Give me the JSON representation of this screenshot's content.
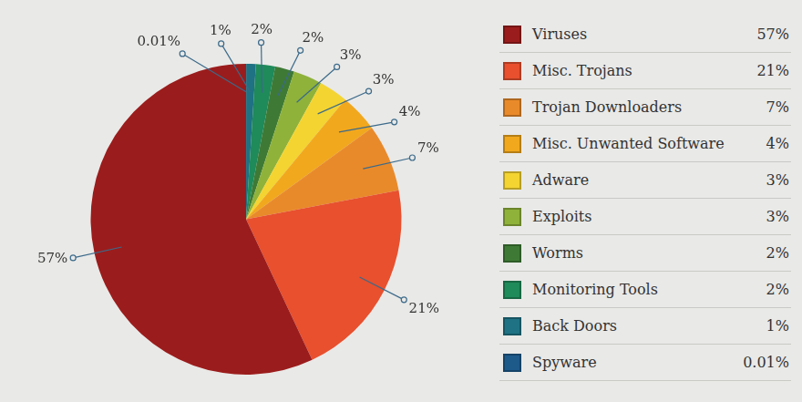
{
  "chart_data": {
    "type": "pie",
    "categories": [
      "Viruses",
      "Misc. Trojans",
      "Trojan Downloaders",
      "Misc. Unwanted Software",
      "Adware",
      "Exploits",
      "Worms",
      "Monitoring Tools",
      "Back Doors",
      "Spyware"
    ],
    "values": [
      57,
      21,
      7,
      4,
      3,
      3,
      2,
      2,
      1,
      0.01
    ],
    "value_labels": [
      "57%",
      "21%",
      "7%",
      "4%",
      "3%",
      "3%",
      "2%",
      "2%",
      "1%",
      "0.01%"
    ],
    "colors": [
      "#9b1c1c",
      "#e8502e",
      "#e98a2a",
      "#f2a81d",
      "#f4d431",
      "#8fb23a",
      "#3e7a35",
      "#1f8a5a",
      "#1e7283",
      "#1d5a8a"
    ],
    "data_labels": true,
    "legend": "right"
  }
}
